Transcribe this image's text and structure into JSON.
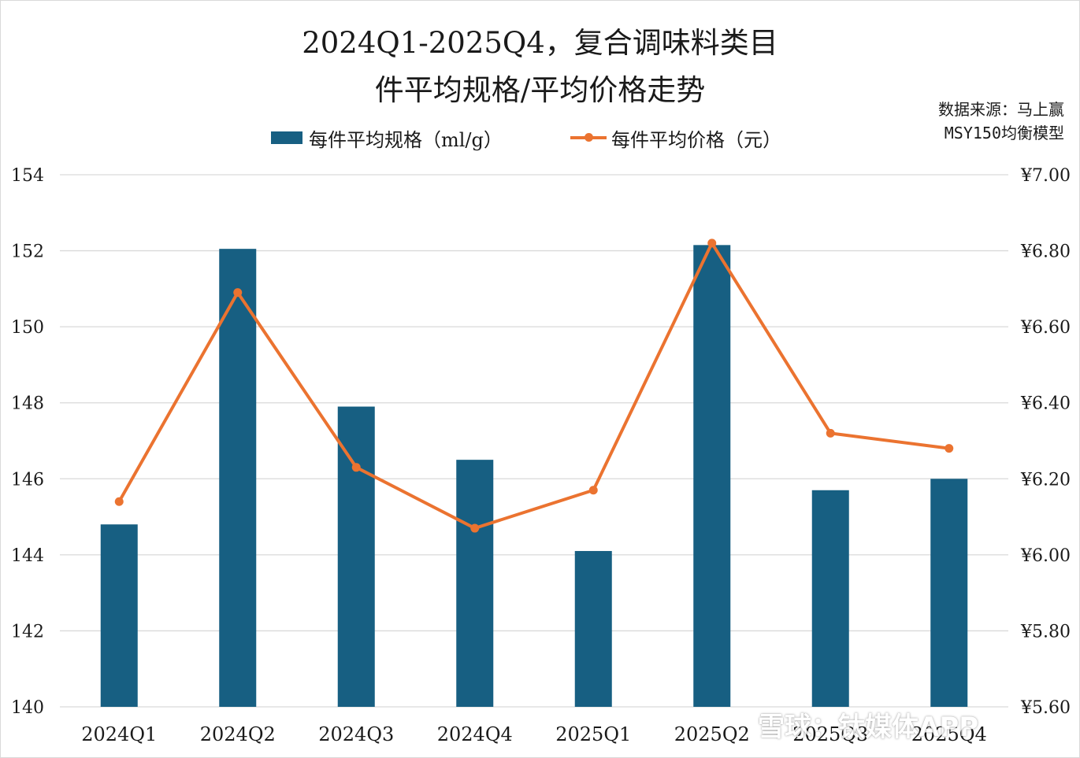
{
  "title_line1": "2024Q1-2025Q4，复合调味料类目",
  "title_line2": "件平均规格/平均价格走势",
  "source_line1": "数据来源：马上赢",
  "source_line2": "MSY150均衡模型",
  "watermark": "雪球：钛媒体APP",
  "colors": {
    "bar": "#175f82",
    "line": "#eb7330",
    "grid": "#d9d9d9"
  },
  "chart_data": {
    "type": "bar",
    "categories": [
      "2024Q1",
      "2024Q2",
      "2024Q3",
      "2024Q4",
      "2025Q1",
      "2025Q2",
      "2025Q3",
      "2025Q4"
    ],
    "series": [
      {
        "name": "每件平均规格（ml/g）",
        "type": "bar",
        "axis": "left",
        "values": [
          144.8,
          152.05,
          147.9,
          146.5,
          144.1,
          152.15,
          145.7,
          146.0
        ]
      },
      {
        "name": "每件平均价格（元）",
        "type": "line",
        "axis": "right",
        "values": [
          6.14,
          6.69,
          6.23,
          6.07,
          6.17,
          6.82,
          6.32,
          6.28
        ]
      }
    ],
    "left_axis": {
      "ylim": [
        140,
        154
      ],
      "ticks": [
        "140",
        "142",
        "144",
        "146",
        "148",
        "150",
        "152",
        "154"
      ]
    },
    "right_axis": {
      "ylim": [
        5.6,
        7.0
      ],
      "ticks": [
        "¥5.60",
        "¥5.80",
        "¥6.00",
        "¥6.20",
        "¥6.40",
        "¥6.60",
        "¥6.80",
        "¥7.00"
      ]
    },
    "grid": true,
    "legend": "top-center"
  }
}
